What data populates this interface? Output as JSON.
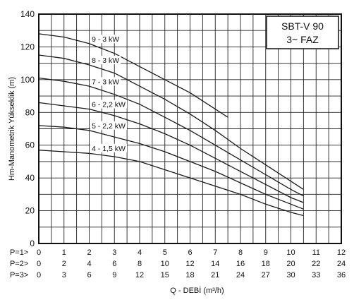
{
  "chart_data": {
    "type": "line",
    "ylabel": "Hm-Manometrik Yükseklik (m)",
    "xlabel": "Q - DEBİ (m³/h)",
    "title_lines": [
      "SBT-V 90",
      "3~ FAZ"
    ],
    "ylim": [
      0,
      140
    ],
    "y_ticks": [
      "0",
      "20",
      "40",
      "60",
      "80",
      "100",
      "120",
      "140"
    ],
    "xlim": [
      0,
      12
    ],
    "grid": true,
    "x_rows": [
      {
        "label": "P=1>",
        "ticks": [
          "0",
          "1",
          "2",
          "3",
          "4",
          "5",
          "6",
          "7",
          "8",
          "9",
          "10",
          "11",
          "12"
        ]
      },
      {
        "label": "P=2>",
        "ticks": [
          "0",
          "2",
          "4",
          "6",
          "8",
          "10",
          "12",
          "14",
          "16",
          "18",
          "20",
          "22",
          "24"
        ]
      },
      {
        "label": "P=3>",
        "ticks": [
          "0",
          "3",
          "6",
          "9",
          "12",
          "15",
          "18",
          "21",
          "24",
          "27",
          "30",
          "33",
          "36"
        ]
      }
    ],
    "series": [
      {
        "name": "9 - 3 kW",
        "x": [
          0,
          1,
          2,
          3,
          4,
          5,
          6,
          7,
          7.5
        ],
        "y": [
          128,
          126,
          122,
          116,
          108,
          100,
          92,
          82,
          77
        ]
      },
      {
        "name": "8 - 3 kW",
        "x": [
          0,
          1,
          2,
          3,
          4,
          5,
          6,
          7,
          8,
          9,
          10,
          10.5
        ],
        "y": [
          115,
          113,
          109,
          104,
          96,
          88,
          79,
          69,
          58,
          48,
          38,
          33
        ]
      },
      {
        "name": "7 - 3 kW",
        "x": [
          0,
          1,
          2,
          3,
          4,
          5,
          6,
          7,
          8,
          9,
          10,
          10.5
        ],
        "y": [
          101,
          99,
          96,
          91,
          85,
          77,
          69,
          60,
          51,
          42,
          33,
          29
        ]
      },
      {
        "name": "6 - 2,2 kW",
        "x": [
          0,
          1,
          2,
          3,
          4,
          5,
          6,
          7,
          8,
          9,
          10,
          10.5
        ],
        "y": [
          86,
          84,
          82,
          78,
          73,
          67,
          60,
          52,
          44,
          36,
          28,
          25
        ]
      },
      {
        "name": "5 - 2,2 kW",
        "x": [
          0,
          1,
          2,
          3,
          4,
          5,
          6,
          7,
          8,
          9,
          10,
          10.5
        ],
        "y": [
          72,
          71,
          69,
          65,
          61,
          56,
          50,
          44,
          37,
          30,
          24,
          21
        ]
      },
      {
        "name": "4 - 1,5 kW",
        "x": [
          0,
          1,
          2,
          3,
          4,
          5,
          6,
          7,
          8,
          9,
          10,
          10.5
        ],
        "y": [
          57,
          56,
          55,
          53,
          50,
          45,
          40,
          35,
          30,
          24,
          19,
          17
        ]
      }
    ],
    "series_color": "#1a1a1a"
  }
}
